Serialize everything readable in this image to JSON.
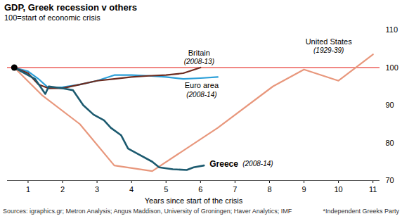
{
  "chart_data": {
    "type": "line",
    "title": "GDP, Greek recession v others",
    "subtitle": "100=start of economic crisis",
    "x_label": "Years since start of the crisis",
    "source": "Sources: igraphics.gr; Metron Analysis; Angus Maddison, University of Groningen; Haver Analytics; IMF",
    "footnote": "*Independent Greeks Party",
    "xlim": [
      0.4,
      11.2
    ],
    "xticks": [
      1,
      2,
      3,
      4,
      5,
      6,
      7,
      8,
      9,
      10,
      11
    ],
    "ylim": [
      70,
      110
    ],
    "yticks": [
      70,
      80,
      90,
      100,
      110
    ],
    "grid": false,
    "series": [
      {
        "name": "United States",
        "annotation": "(1929-39)",
        "color": "#e8977c",
        "x": [
          0.6,
          1.4,
          2.5,
          3.5,
          4.6,
          6.5,
          8.1,
          9.0,
          10.0,
          11.0
        ],
        "values": [
          100,
          92.7,
          85,
          74,
          72.5,
          84,
          95,
          99.5,
          96.5,
          103.5
        ]
      },
      {
        "name": "Euro area",
        "annotation": "(2008-14)",
        "color": "#2b9fd8",
        "x": [
          0.6,
          1.0,
          1.3,
          1.6,
          2.0,
          2.5,
          3.0,
          3.5,
          4.0,
          4.5,
          5.0,
          5.5,
          6.0,
          6.5
        ],
        "values": [
          100,
          99,
          97,
          94.5,
          94.8,
          95.5,
          96.5,
          98,
          98,
          97.8,
          97.5,
          97,
          97.2,
          97.5
        ]
      },
      {
        "name": "Britain",
        "annotation": "(2008-13)",
        "color": "#6b2b1f",
        "x": [
          0.6,
          1.0,
          1.3,
          1.6,
          2.0,
          2.5,
          3.0,
          3.5,
          4.0,
          4.5,
          5.0,
          5.5,
          6.0
        ],
        "values": [
          100,
          98.5,
          95.5,
          94.5,
          94.5,
          95.5,
          96.5,
          97,
          97.5,
          97.8,
          98,
          98.5,
          100
        ]
      },
      {
        "name": "Greece",
        "annotation": "(2008-14)",
        "color": "#1c5a6f",
        "x": [
          0.6,
          1.2,
          1.5,
          1.6,
          2.0,
          2.3,
          2.6,
          2.9,
          3.2,
          3.4,
          3.7,
          3.9,
          4.2,
          4.6,
          4.8,
          5.2,
          5.6,
          5.8,
          6.1
        ],
        "values": [
          100,
          97,
          93,
          95,
          94.5,
          94,
          90,
          87.5,
          86,
          84,
          82,
          78.5,
          77,
          75,
          73.5,
          73,
          72.8,
          73.5,
          74
        ]
      }
    ]
  }
}
